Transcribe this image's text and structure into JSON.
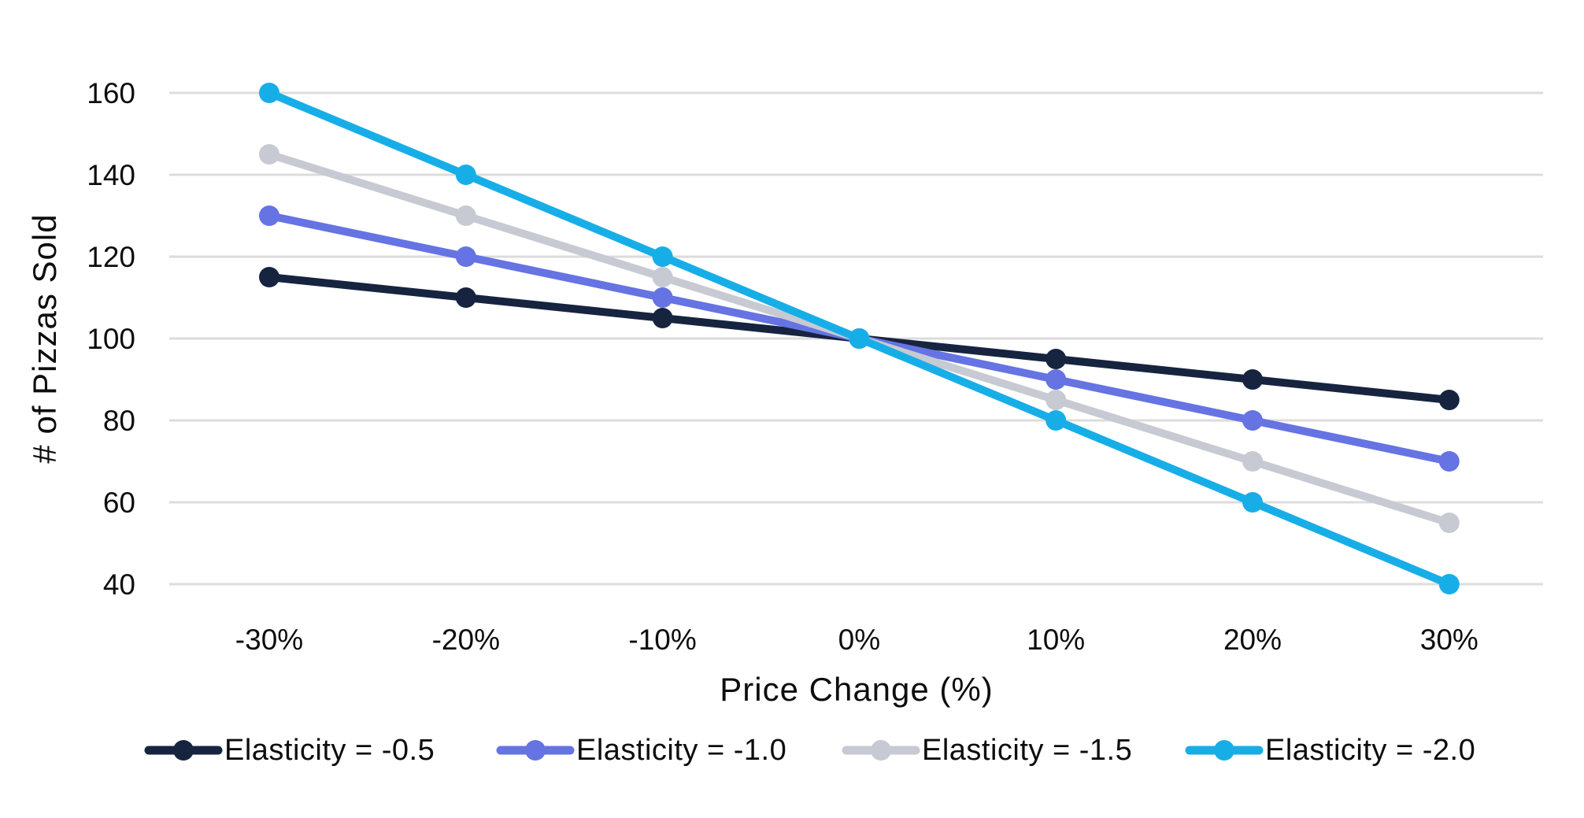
{
  "page": {
    "background": "#ffffff",
    "text_color": "#0d0d0d"
  },
  "chart_data": {
    "type": "line",
    "title": "",
    "xlabel": "Price Change (%)",
    "ylabel": "# of Pizzas Sold",
    "categories": [
      "-30%",
      "-20%",
      "-10%",
      "0%",
      "10%",
      "20%",
      "30%"
    ],
    "series": [
      {
        "name": "Elasticity = -0.5",
        "color": "#162440",
        "values": [
          115,
          110,
          105,
          100,
          95,
          90,
          85
        ]
      },
      {
        "name": "Elasticity = -1.0",
        "color": "#6673e3",
        "values": [
          130,
          120,
          110,
          100,
          90,
          80,
          70
        ]
      },
      {
        "name": "Elasticity = -1.5",
        "color": "#c7cad2",
        "values": [
          145,
          130,
          115,
          100,
          85,
          70,
          55
        ]
      },
      {
        "name": "Elasticity = -2.0",
        "color": "#17aee8",
        "values": [
          160,
          140,
          120,
          100,
          80,
          60,
          40
        ]
      }
    ],
    "yticks": [
      160,
      140,
      120,
      100,
      80,
      60,
      40
    ],
    "ylim": [
      40,
      160
    ],
    "grid": "horizontal",
    "gridline_color": "#dcdcdc",
    "legend_position": "bottom",
    "marker": "circle",
    "legend_labels": [
      "Elasticity = -0.5",
      "Elasticity = -1.0",
      "Elasticity = -1.5",
      "Elasticity = -2.0"
    ]
  }
}
